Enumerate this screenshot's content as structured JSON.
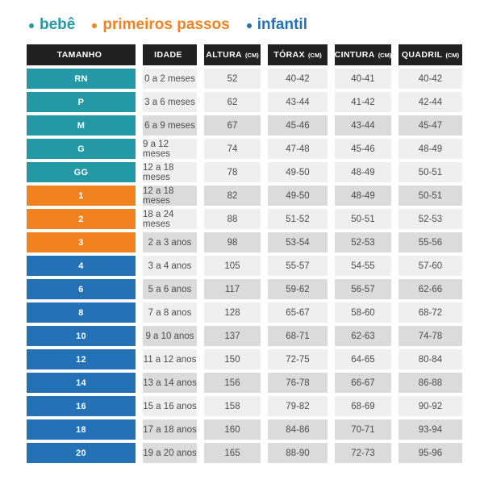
{
  "legend": {
    "items": [
      {
        "label": "bebê",
        "color": "#2598a6"
      },
      {
        "label": "primeiros passos",
        "color": "#f28120"
      },
      {
        "label": "infantil",
        "color": "#2471b6"
      }
    ]
  },
  "table": {
    "header_bg": "#212121",
    "header_text_color": "#ffffff",
    "columns": [
      {
        "label": "TAMANHO",
        "unit": ""
      },
      {
        "label": "IDADE",
        "unit": ""
      },
      {
        "label": "ALTURA",
        "unit": "(CM)"
      },
      {
        "label": "TÓRAX",
        "unit": "(CM)"
      },
      {
        "label": "CINTURA",
        "unit": "(CM)"
      },
      {
        "label": "QUADRIL",
        "unit": "(CM)"
      }
    ],
    "group_colors": {
      "bebe": "#2598a6",
      "primeiros_passos": "#f28120",
      "infantil": "#2471b6"
    },
    "row_shades": {
      "light": "#efefef",
      "dark": "#dbdbdb"
    },
    "rows": [
      {
        "size": "RN",
        "group": "bebe",
        "shade": "light",
        "age": "0 a 2 meses",
        "height": "52",
        "chest": "40-42",
        "waist": "40-41",
        "hip": "40-42"
      },
      {
        "size": "P",
        "group": "bebe",
        "shade": "light",
        "age": "3 a 6 meses",
        "height": "62",
        "chest": "43-44",
        "waist": "41-42",
        "hip": "42-44"
      },
      {
        "size": "M",
        "group": "bebe",
        "shade": "dark",
        "age": "6 a 9 meses",
        "height": "67",
        "chest": "45-46",
        "waist": "43-44",
        "hip": "45-47"
      },
      {
        "size": "G",
        "group": "bebe",
        "shade": "light",
        "age": "9 a 12 meses",
        "height": "74",
        "chest": "47-48",
        "waist": "45-46",
        "hip": "48-49"
      },
      {
        "size": "GG",
        "group": "bebe",
        "shade": "light",
        "age": "12 a 18 meses",
        "height": "78",
        "chest": "49-50",
        "waist": "48-49",
        "hip": "50-51"
      },
      {
        "size": "1",
        "group": "primeiros_passos",
        "shade": "dark",
        "age": "12 a 18 meses",
        "height": "82",
        "chest": "49-50",
        "waist": "48-49",
        "hip": "50-51"
      },
      {
        "size": "2",
        "group": "primeiros_passos",
        "shade": "light",
        "age": "18 a 24 meses",
        "height": "88",
        "chest": "51-52",
        "waist": "50-51",
        "hip": "52-53"
      },
      {
        "size": "3",
        "group": "primeiros_passos",
        "shade": "dark",
        "age": "2 a 3 anos",
        "height": "98",
        "chest": "53-54",
        "waist": "52-53",
        "hip": "55-56"
      },
      {
        "size": "4",
        "group": "infantil",
        "shade": "light",
        "age": "3 a 4 anos",
        "height": "105",
        "chest": "55-57",
        "waist": "54-55",
        "hip": "57-60"
      },
      {
        "size": "6",
        "group": "infantil",
        "shade": "dark",
        "age": "5 a 6 anos",
        "height": "117",
        "chest": "59-62",
        "waist": "56-57",
        "hip": "62-66"
      },
      {
        "size": "8",
        "group": "infantil",
        "shade": "light",
        "age": "7 a 8 anos",
        "height": "128",
        "chest": "65-67",
        "waist": "58-60",
        "hip": "68-72"
      },
      {
        "size": "10",
        "group": "infantil",
        "shade": "dark",
        "age": "9 a 10 anos",
        "height": "137",
        "chest": "68-71",
        "waist": "62-63",
        "hip": "74-78"
      },
      {
        "size": "12",
        "group": "infantil",
        "shade": "light",
        "age": "11 a 12 anos",
        "height": "150",
        "chest": "72-75",
        "waist": "64-65",
        "hip": "80-84"
      },
      {
        "size": "14",
        "group": "infantil",
        "shade": "dark",
        "age": "13 a 14 anos",
        "height": "156",
        "chest": "76-78",
        "waist": "66-67",
        "hip": "86-88"
      },
      {
        "size": "16",
        "group": "infantil",
        "shade": "light",
        "age": "15 a 16 anos",
        "height": "158",
        "chest": "79-82",
        "waist": "68-69",
        "hip": "90-92"
      },
      {
        "size": "18",
        "group": "infantil",
        "shade": "dark",
        "age": "17 a 18 anos",
        "height": "160",
        "chest": "84-86",
        "waist": "70-71",
        "hip": "93-94"
      },
      {
        "size": "20",
        "group": "infantil",
        "shade": "dark",
        "age": "19 a 20 anos",
        "height": "165",
        "chest": "88-90",
        "waist": "72-73",
        "hip": "95-96"
      }
    ]
  },
  "chart_data": {
    "type": "table",
    "title": "",
    "legend": [
      "bebê",
      "primeiros passos",
      "infantil"
    ],
    "legend_position": "top",
    "columns": [
      "TAMANHO",
      "IDADE",
      "ALTURA (CM)",
      "TÓRAX (CM)",
      "CINTURA (CM)",
      "QUADRIL (CM)"
    ],
    "rows": [
      [
        "RN",
        "0 a 2 meses",
        "52",
        "40-42",
        "40-41",
        "40-42"
      ],
      [
        "P",
        "3 a 6 meses",
        "62",
        "43-44",
        "41-42",
        "42-44"
      ],
      [
        "M",
        "6 a 9 meses",
        "67",
        "45-46",
        "43-44",
        "45-47"
      ],
      [
        "G",
        "9 a 12 meses",
        "74",
        "47-48",
        "45-46",
        "48-49"
      ],
      [
        "GG",
        "12 a 18 meses",
        "78",
        "49-50",
        "48-49",
        "50-51"
      ],
      [
        "1",
        "12 a 18 meses",
        "82",
        "49-50",
        "48-49",
        "50-51"
      ],
      [
        "2",
        "18 a 24 meses",
        "88",
        "51-52",
        "50-51",
        "52-53"
      ],
      [
        "3",
        "2 a 3 anos",
        "98",
        "53-54",
        "52-53",
        "55-56"
      ],
      [
        "4",
        "3 a 4 anos",
        "105",
        "55-57",
        "54-55",
        "57-60"
      ],
      [
        "6",
        "5 a 6 anos",
        "117",
        "59-62",
        "56-57",
        "62-66"
      ],
      [
        "8",
        "7 a 8 anos",
        "128",
        "65-67",
        "58-60",
        "68-72"
      ],
      [
        "10",
        "9 a 10 anos",
        "137",
        "68-71",
        "62-63",
        "74-78"
      ],
      [
        "12",
        "11 a 12 anos",
        "150",
        "72-75",
        "64-65",
        "80-84"
      ],
      [
        "14",
        "13 a 14 anos",
        "156",
        "76-78",
        "66-67",
        "86-88"
      ],
      [
        "16",
        "15 a 16 anos",
        "158",
        "79-82",
        "68-69",
        "90-92"
      ],
      [
        "18",
        "17 a 18 anos",
        "160",
        "84-86",
        "70-71",
        "93-94"
      ],
      [
        "20",
        "19 a 20 anos",
        "165",
        "88-90",
        "72-73",
        "95-96"
      ]
    ]
  }
}
